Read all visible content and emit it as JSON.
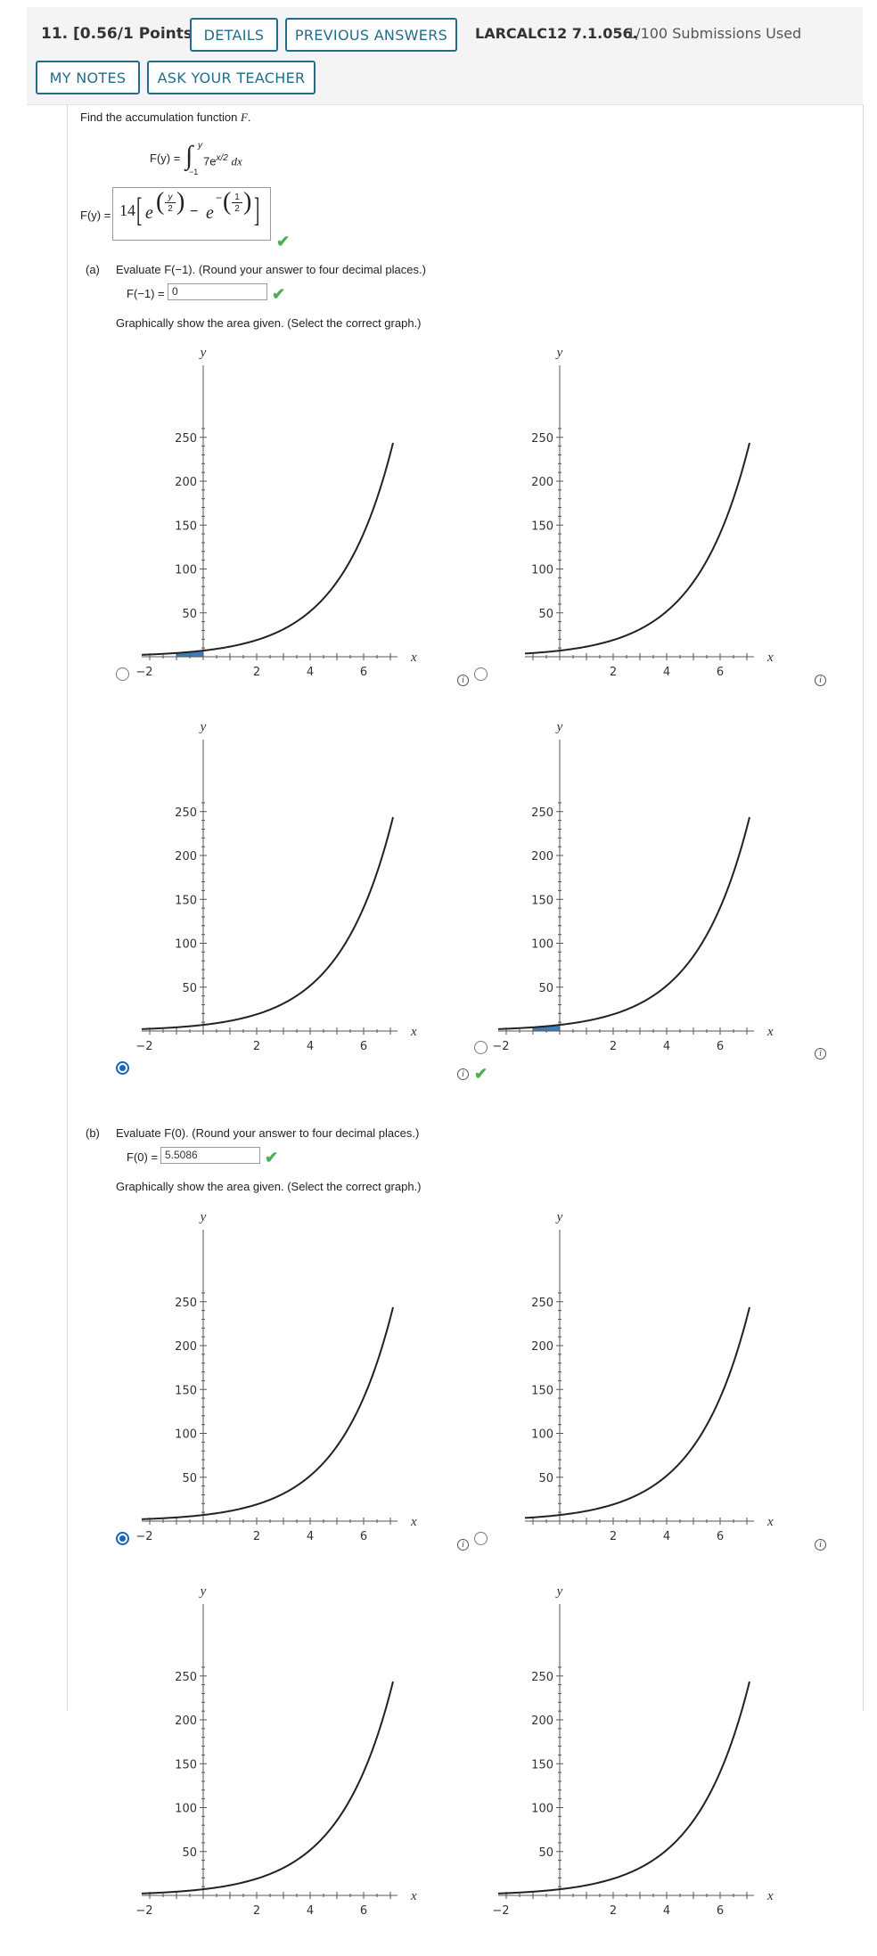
{
  "header": {
    "question_label": "11.  [0.56/1 Points]",
    "details_label": "DETAILS",
    "previous_answers_label": "PREVIOUS ANSWERS",
    "code": "LARCALC12 7.1.056.",
    "submissions": "1/100 Submissions Used",
    "my_notes_label": "MY NOTES",
    "ask_teacher_label": "ASK YOUR TEACHER"
  },
  "problem": {
    "prompt_prefix": "Find the accumulation function ",
    "prompt_var": "F",
    "prompt_suffix": ".",
    "definition_lhs": "F(y) =",
    "integrand_coef": "7e",
    "integrand_exp": "x/2",
    "dx": "dx",
    "lower_limit": "−1",
    "upper_limit": "y",
    "answer_lhs": "F(y) =",
    "answer_coef": "14",
    "answer_e": "e",
    "answer_minus": "−",
    "answer_exp1_num": "y",
    "answer_exp2_num": "1",
    "answer_exp_den": "2"
  },
  "part_a": {
    "label": "(a)",
    "instruction": "Evaluate F(−1). (Round your answer to four decimal places.)",
    "input_label": "F(−1) =",
    "input_value": "0",
    "graph_prompt": "Graphically show the area given. (Select the correct graph.)",
    "selected_option": 3
  },
  "part_b": {
    "label": "(b)",
    "instruction": "Evaluate F(0). (Round your answer to four decimal places.)",
    "input_label": "F(0) =",
    "input_value": "5.5086",
    "graph_prompt": "Graphically show the area given. (Select the correct graph.)",
    "selected_option": 1
  },
  "graph_axes": {
    "x_label": "x",
    "y_label": "y",
    "x_ticks": [
      "−2",
      "2",
      "4",
      "6"
    ],
    "y_ticks": [
      "50",
      "100",
      "150",
      "200",
      "250"
    ]
  },
  "chart_data": [
    {
      "type": "line",
      "function": "7e^(x/2)",
      "xlim": [
        -2.3,
        7.1
      ],
      "ylim": [
        0,
        265
      ],
      "xlabel": "x",
      "ylabel": "y",
      "shaded_region": [
        -1,
        0
      ],
      "group": "a",
      "option": 1
    },
    {
      "type": "line",
      "function": "7e^(x/2)",
      "xlim": [
        -1.3,
        7.1
      ],
      "ylim": [
        0,
        265
      ],
      "xlabel": "x",
      "ylabel": "y",
      "shaded_region": null,
      "group": "a",
      "option": 2
    },
    {
      "type": "line",
      "function": "7e^(x/2)",
      "xlim": [
        -2.3,
        7.1
      ],
      "ylim": [
        0,
        265
      ],
      "xlabel": "x",
      "ylabel": "y",
      "shaded_region": null,
      "group": "a",
      "option": 3
    },
    {
      "type": "line",
      "function": "7e^(x/2)",
      "xlim": [
        -2.3,
        7.1
      ],
      "ylim": [
        0,
        265
      ],
      "xlabel": "x",
      "ylabel": "y",
      "shaded_region": [
        -1,
        0
      ],
      "group": "a",
      "option": 4
    },
    {
      "type": "line",
      "function": "7e^(x/2)",
      "xlim": [
        -2.3,
        7.1
      ],
      "ylim": [
        0,
        265
      ],
      "xlabel": "x",
      "ylabel": "y",
      "shaded_region": null,
      "group": "b",
      "option": 1
    },
    {
      "type": "line",
      "function": "7e^(x/2)",
      "xlim": [
        -1.3,
        7.1
      ],
      "ylim": [
        0,
        265
      ],
      "xlabel": "x",
      "ylabel": "y",
      "shaded_region": null,
      "group": "b",
      "option": 2
    },
    {
      "type": "line",
      "function": "7e^(x/2)",
      "xlim": [
        -2.3,
        7.1
      ],
      "ylim": [
        0,
        265
      ],
      "xlabel": "x",
      "ylabel": "y",
      "shaded_region": null,
      "group": "b",
      "option": 3
    },
    {
      "type": "line",
      "function": "7e^(x/2)",
      "xlim": [
        -2.3,
        7.1
      ],
      "ylim": [
        0,
        265
      ],
      "xlabel": "x",
      "ylabel": "y",
      "shaded_region": null,
      "group": "b",
      "option": 4
    }
  ],
  "colors": {
    "accent": "#1f6e8c",
    "check": "#4caf50",
    "radio_selected": "#1565c0",
    "shade": "#3d7db8"
  }
}
